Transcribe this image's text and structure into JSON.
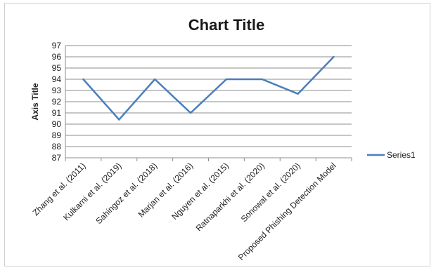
{
  "chart_data": {
    "type": "line",
    "title": "Chart Title",
    "xlabel": "",
    "ylabel": "Axis Title",
    "ylim": [
      87,
      97
    ],
    "yticks": [
      87,
      88,
      89,
      90,
      91,
      92,
      93,
      94,
      95,
      96,
      97
    ],
    "grid": true,
    "legend_position": "right",
    "categories": [
      "Zhang et al. (2011)",
      "Kulkarni et al. (2019)",
      "Sahingoz et al. (2018)",
      "Marjan et al. (2016)",
      "Nguyen et al. (2015)",
      "Ratnaparkhi et al. (2020)",
      "Sonowal et al. (2020)",
      "Proposed Phishing Detection Model"
    ],
    "series": [
      {
        "name": "Series1",
        "color": "#4a7ebb",
        "values": [
          94,
          90.4,
          94,
          91,
          94,
          94,
          92.7,
          96
        ]
      }
    ]
  }
}
